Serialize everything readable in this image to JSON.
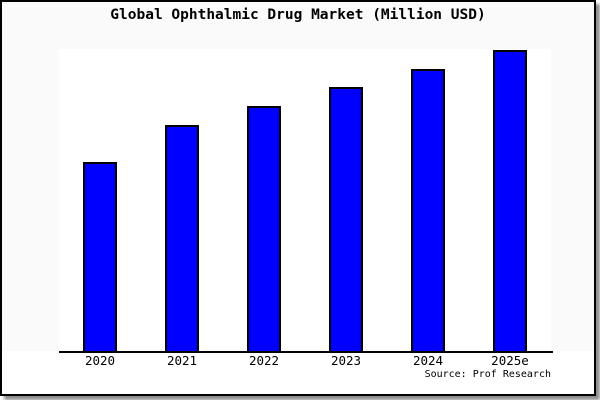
{
  "frame": {
    "background": "#fafafa",
    "border_color": "#000000",
    "plot_background": "#ffffff"
  },
  "title": "Global Ophthalmic Drug Market (Million USD)",
  "source_credit": "Source: Prof Research",
  "chart_data": {
    "type": "bar",
    "title": "Global Ophthalmic Drug Market (Million USD)",
    "categories": [
      "2020",
      "2021",
      "2022",
      "2023",
      "2024",
      "2025e"
    ],
    "values": [
      62.8,
      75.1,
      81.4,
      87.7,
      93.7,
      100
    ],
    "value_scale": "relative height, tallest bar = 100 (y-axis has no tick labels)",
    "xlabel": "",
    "ylabel": "",
    "ylim": [
      0,
      100
    ],
    "grid": false,
    "legend": "none",
    "bar_color": "#0000ff",
    "bar_border_color": "#000000"
  }
}
